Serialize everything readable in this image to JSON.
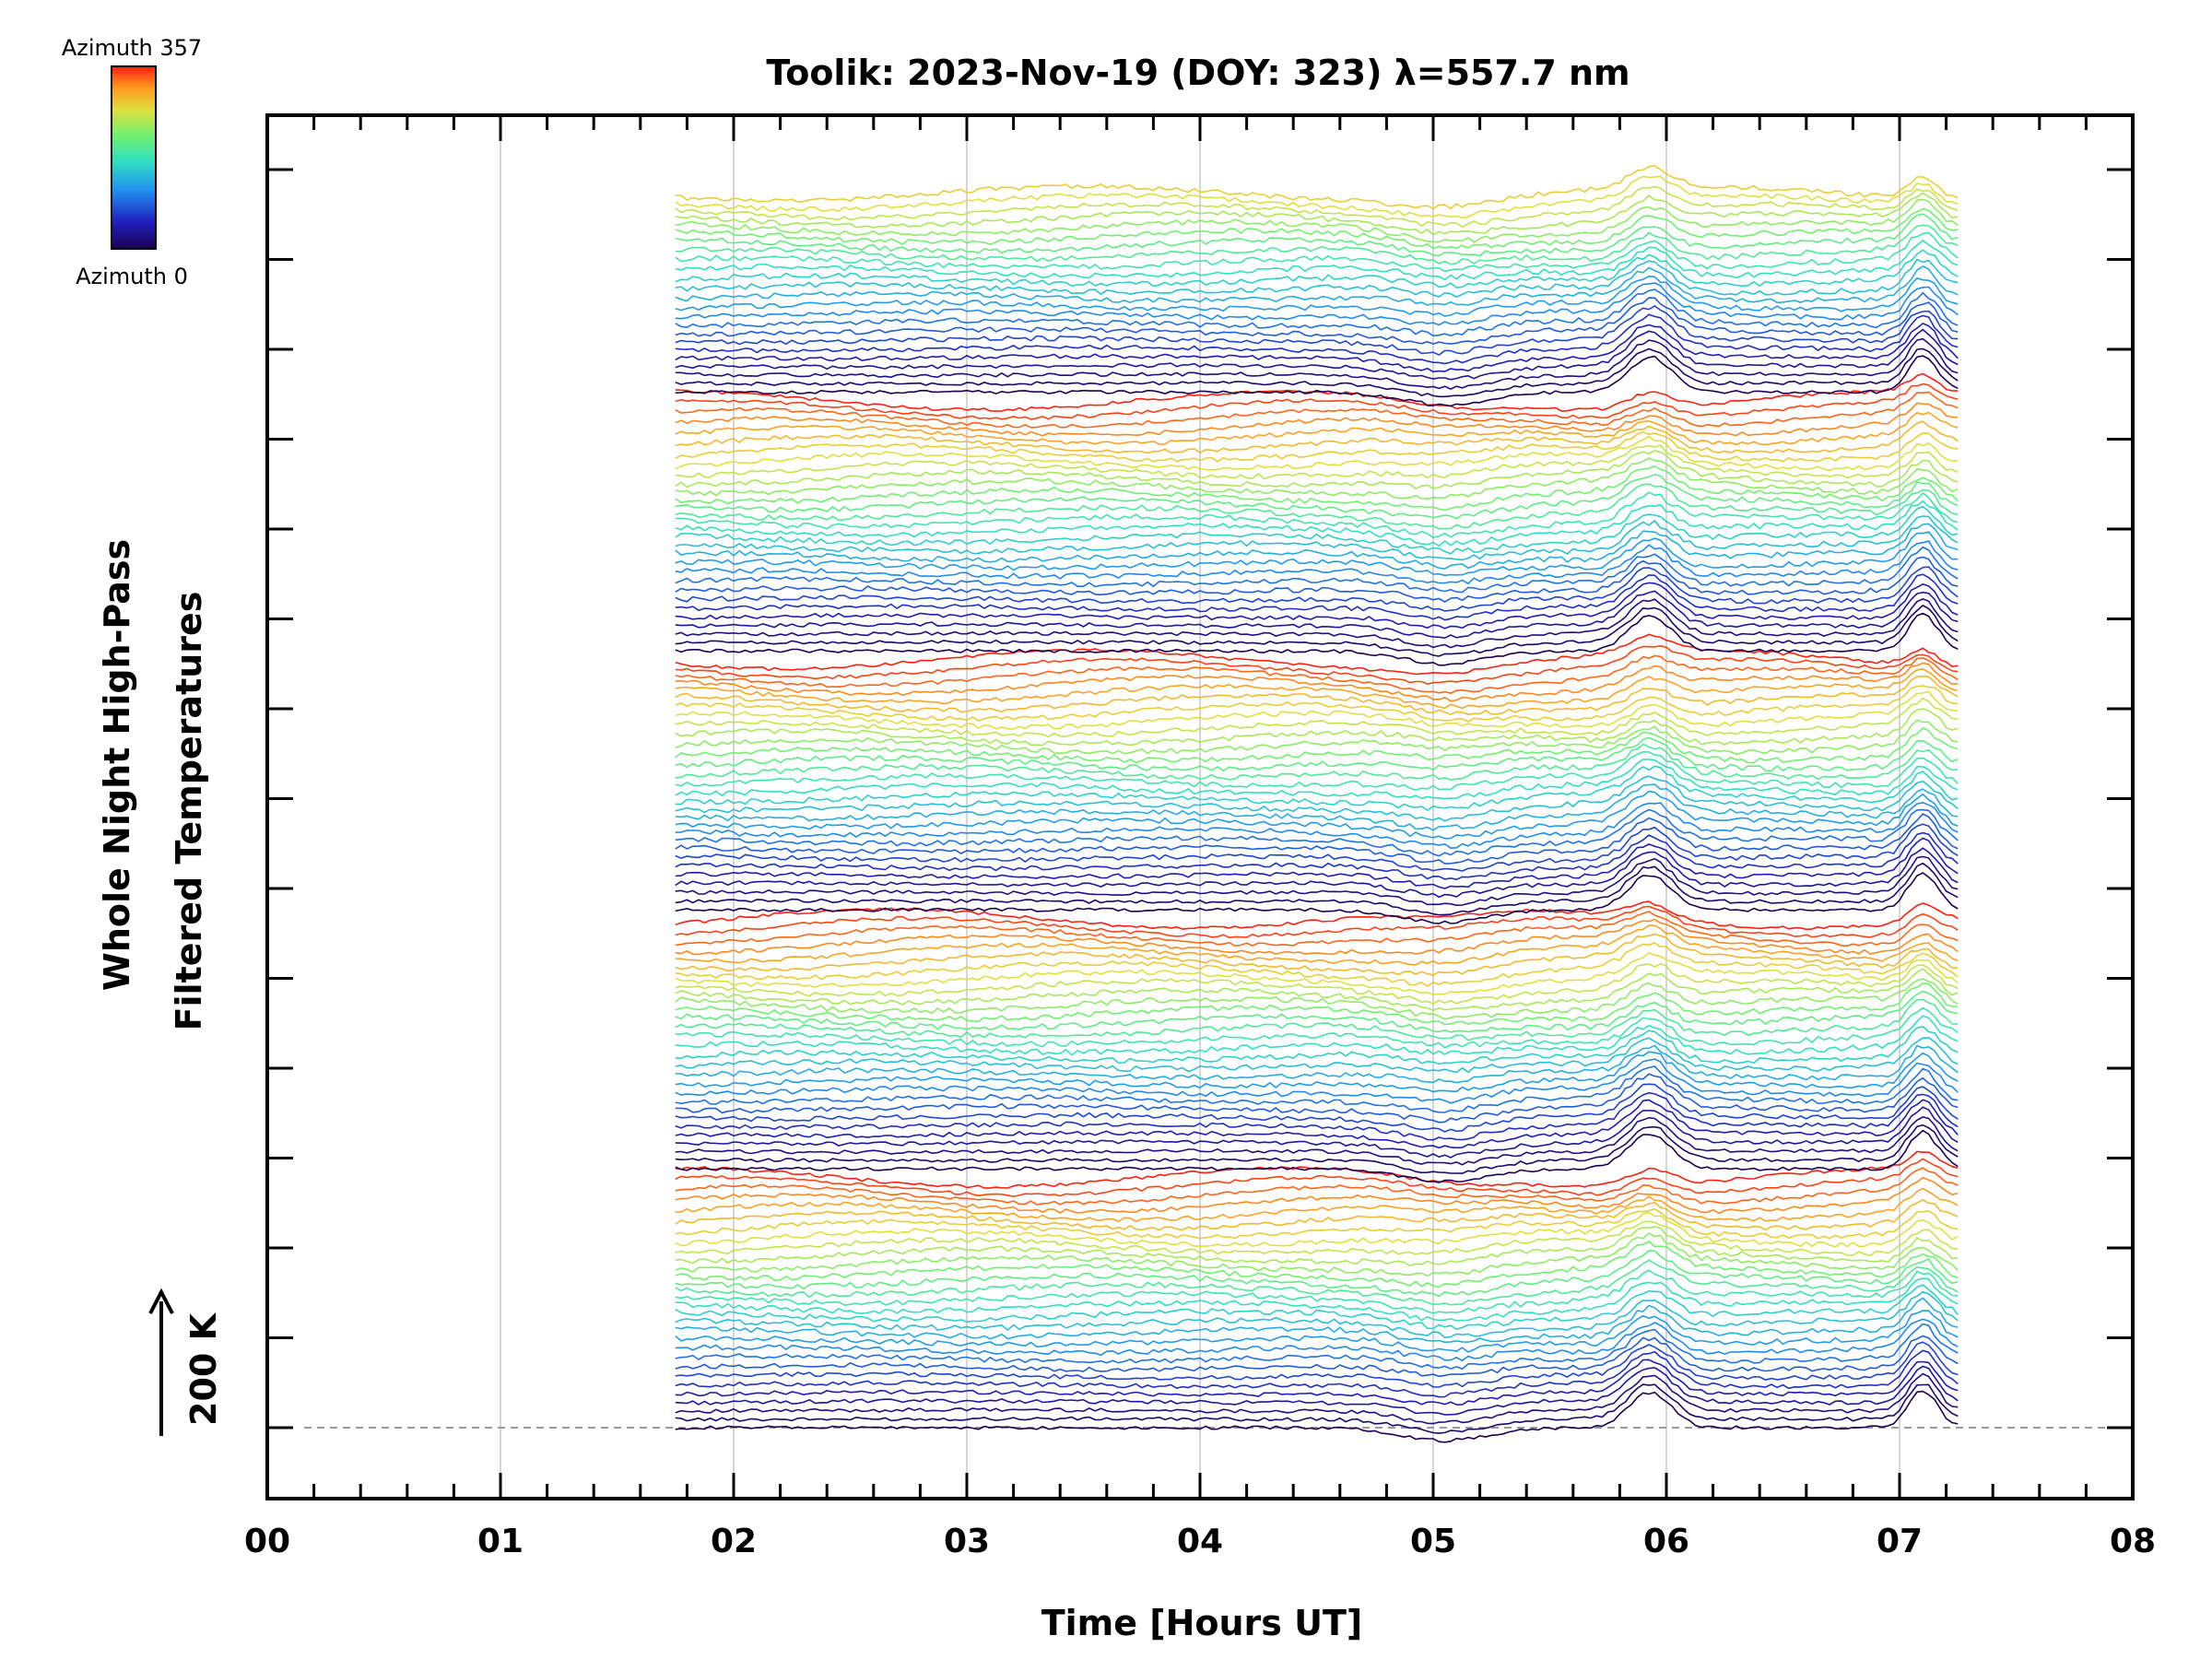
{
  "chart_data": {
    "type": "line",
    "title": "Toolik: 2023-Nov-19 (DOY: 323) λ=557.7 nm",
    "xlabel": "Time [Hours UT]",
    "ylabel_line1": "Whole Night High-Pass",
    "ylabel_line2": "Filtered Temperatures",
    "scale_label": "200 K",
    "xlim": [
      0,
      8
    ],
    "x_ticks": [
      "00",
      "01",
      "02",
      "03",
      "04",
      "05",
      "06",
      "07",
      "08"
    ],
    "x_grid": [
      1,
      2,
      3,
      4,
      5,
      6,
      7
    ],
    "grid": true,
    "legend": {
      "type": "colorbar",
      "placement": "top-left",
      "top_label": "Azimuth  357",
      "bottom_label": "Azimuth  0",
      "colormap": "rainbow"
    },
    "series_count": 144,
    "series_time_range_hours": [
      1.75,
      7.25
    ],
    "series_description_note": "",
    "features": {
      "peak_time_hours": 5.93,
      "late_rise_time_hours": 7.1,
      "dip_time_hours": 5.05,
      "wave_start_hours": 2.75,
      "wave_peak_hours": 3.5
    }
  },
  "colors": {
    "background": "#ffffff",
    "axis": "#000000",
    "grid": "#d6d6d6",
    "baseline": "#9a9a9a"
  }
}
